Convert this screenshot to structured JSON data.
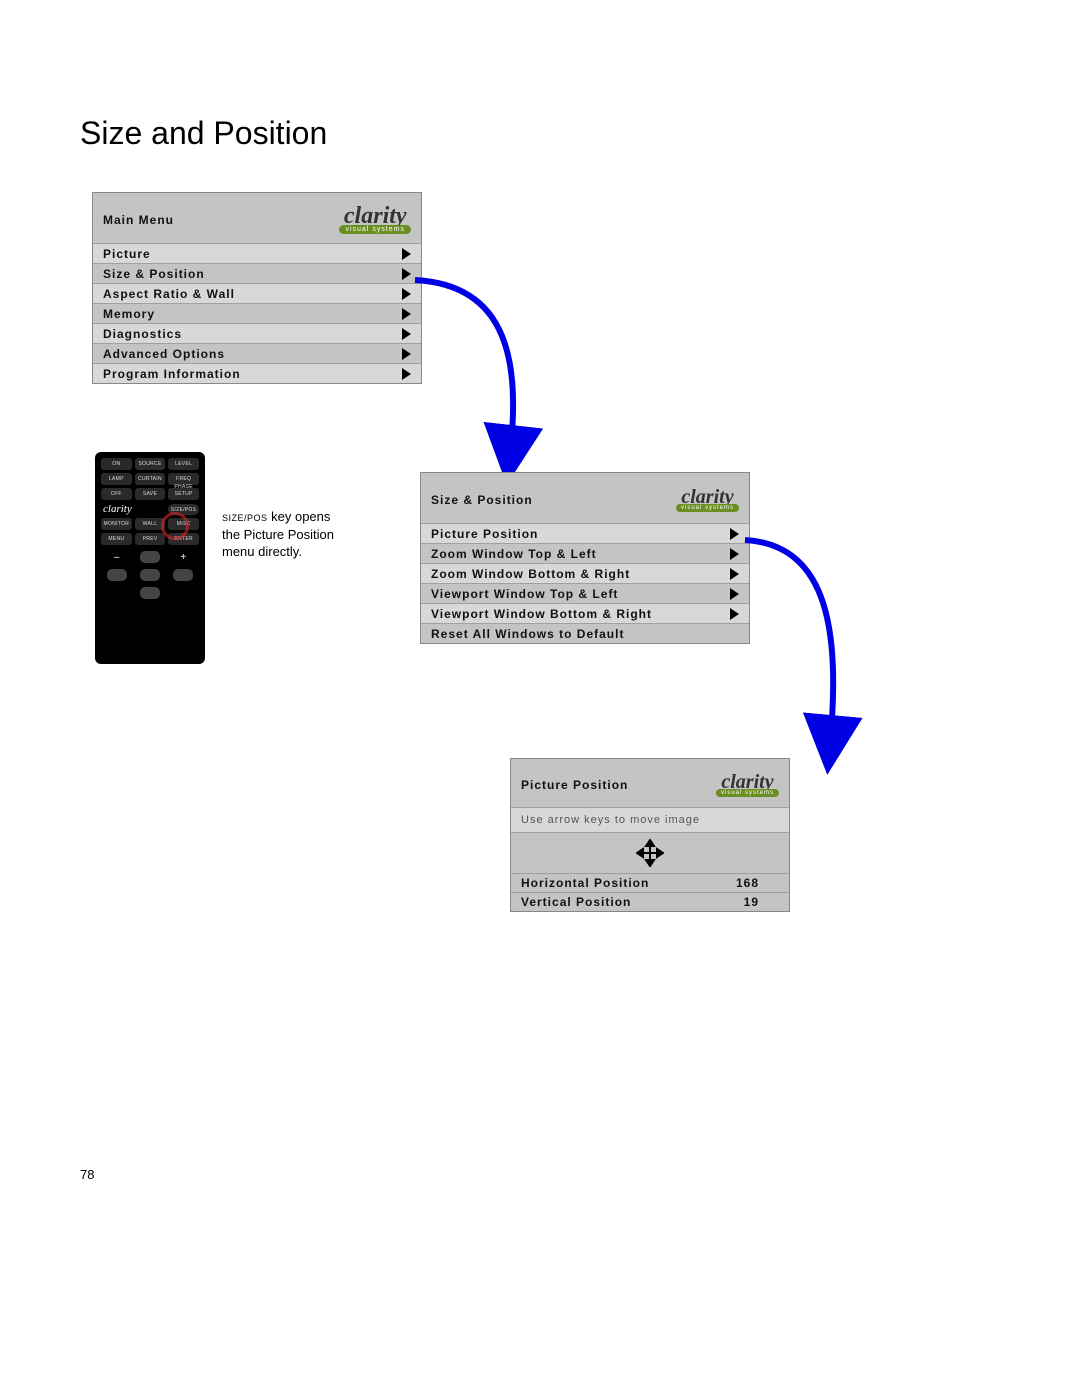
{
  "page": {
    "title": "Size and Position",
    "number": "78"
  },
  "brand": {
    "name": "clarity",
    "sub": "visual systems"
  },
  "caption": {
    "line1_prefix": "SIZE/POS",
    "line1_rest": " key opens the Picture Position menu directly."
  },
  "menu1": {
    "title": "Main Menu",
    "items": [
      {
        "label": "Picture",
        "arrow": true
      },
      {
        "label": "Size & Position",
        "arrow": true
      },
      {
        "label": "Aspect Ratio & Wall",
        "arrow": true
      },
      {
        "label": "Memory",
        "arrow": true
      },
      {
        "label": "Diagnostics",
        "arrow": true
      },
      {
        "label": "Advanced Options",
        "arrow": true
      },
      {
        "label": "Program Information",
        "arrow": true
      }
    ]
  },
  "menu2": {
    "title": "Size & Position",
    "items": [
      {
        "label": "Picture Position",
        "arrow": true
      },
      {
        "label": "Zoom Window Top & Left",
        "arrow": true
      },
      {
        "label": "Zoom Window Bottom & Right",
        "arrow": true
      },
      {
        "label": "Viewport Window Top & Left",
        "arrow": true
      },
      {
        "label": "Viewport Window Bottom & Right",
        "arrow": true
      },
      {
        "label": "Reset All Windows to Default",
        "arrow": false
      }
    ]
  },
  "menu3": {
    "title": "Picture Position",
    "instruction": "Use arrow keys to move image",
    "values": [
      {
        "label": "Horizontal Position",
        "value": "168"
      },
      {
        "label": "Vertical Position",
        "value": "19"
      }
    ]
  },
  "remote": {
    "row1": [
      "ON",
      "SOURCE",
      "LEVEL"
    ],
    "row2": [
      "LAMP",
      "CURTAIN",
      "FREQ PHASE"
    ],
    "row3": [
      "OFF",
      "SAVE",
      "SETUP"
    ],
    "row4_brand": "clarity",
    "row4_btn": "SIZE/POS",
    "row5": [
      "MONITOR",
      "WALL",
      "MISC"
    ],
    "row6": [
      "MENU",
      "PREV",
      "ENTER"
    ],
    "minus": "–",
    "plus": "+"
  },
  "style": {
    "arrow_color": "#0000e5",
    "menu_bg_dark": "#c4c4c4",
    "menu_bg_light": "#d8d8d8",
    "highlight_color": "rgba(220,40,40,0.6)"
  }
}
